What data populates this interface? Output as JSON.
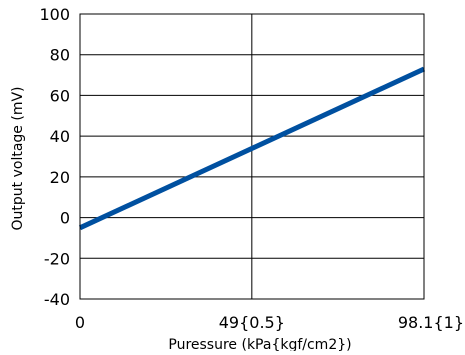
{
  "chart_data": {
    "type": "line",
    "title": "",
    "xlabel": "Puressure (kPa{kgf/cm2})",
    "ylabel": "Output voltage (mV)",
    "xlim": [
      0,
      98.1
    ],
    "ylim": [
      -40,
      100
    ],
    "x_ticks": [
      {
        "value": 0,
        "label": "0"
      },
      {
        "value": 49,
        "label": "49{0.5}"
      },
      {
        "value": 98.1,
        "label": "98.1{1}"
      }
    ],
    "y_ticks": [
      {
        "value": -40,
        "label": "-40"
      },
      {
        "value": -20,
        "label": "-20"
      },
      {
        "value": 0,
        "label": "0"
      },
      {
        "value": 20,
        "label": "20"
      },
      {
        "value": 40,
        "label": "40"
      },
      {
        "value": 60,
        "label": "60"
      },
      {
        "value": 80,
        "label": "80"
      },
      {
        "value": 100,
        "label": "100"
      }
    ],
    "grid": true,
    "series": [
      {
        "color": "#0050a0",
        "x": [
          0,
          98.1
        ],
        "y": [
          -5,
          73
        ]
      }
    ]
  }
}
